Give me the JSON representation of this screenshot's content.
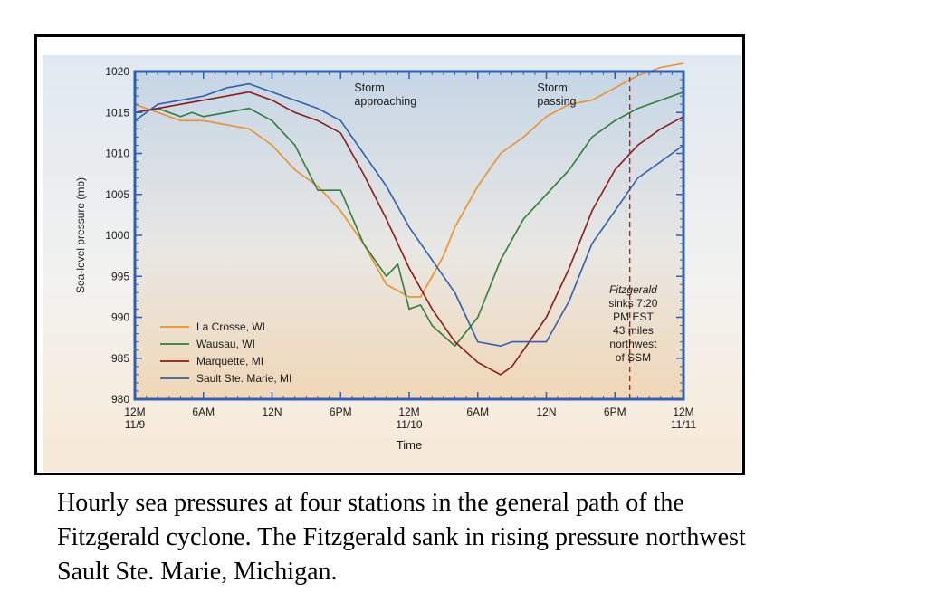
{
  "caption": {
    "line1": "Hourly sea pressures at four stations in the general path of the",
    "line2": "Fitzgerald cyclone.  The Fitzgerald sank in rising pressure northwest",
    "line3": "Sault Ste. Marie, Michigan."
  },
  "chart_data": {
    "type": "line",
    "title": "",
    "xlabel": "Time",
    "ylabel": "Sea-level pressure (mb)",
    "ylim": [
      980,
      1020
    ],
    "xlim": [
      0,
      48
    ],
    "x_unit": "hours since 12M 11/9",
    "y_ticks": [
      "980",
      "985",
      "990",
      "995",
      "1000",
      "1005",
      "1010",
      "1015",
      "1020"
    ],
    "x_ticks": [
      {
        "at": 0,
        "label": "12M",
        "sub": "11/9"
      },
      {
        "at": 6,
        "label": "6AM",
        "sub": ""
      },
      {
        "at": 12,
        "label": "12N",
        "sub": ""
      },
      {
        "at": 18,
        "label": "6PM",
        "sub": ""
      },
      {
        "at": 24,
        "label": "12M",
        "sub": "11/10"
      },
      {
        "at": 30,
        "label": "6AM",
        "sub": ""
      },
      {
        "at": 36,
        "label": "12N",
        "sub": ""
      },
      {
        "at": 42,
        "label": "6PM",
        "sub": ""
      },
      {
        "at": 48,
        "label": "12M",
        "sub": "11/11"
      }
    ],
    "legend_position": "bottom-left",
    "series": [
      {
        "name": "La Crosse, WI",
        "color": "#e8912a",
        "x": [
          0,
          2,
          4,
          6,
          8,
          10,
          12,
          14,
          16,
          18,
          20,
          22,
          24,
          25,
          26,
          27,
          28,
          29,
          30,
          32,
          34,
          36,
          38,
          40,
          42,
          44,
          46,
          48
        ],
        "y": [
          1016,
          1015,
          1014,
          1014,
          1013.5,
          1013,
          1011,
          1008,
          1006,
          1003,
          999,
          994,
          992.5,
          992.5,
          995,
          997.5,
          1001,
          1003.5,
          1006,
          1010,
          1012,
          1014.5,
          1016,
          1016.5,
          1018,
          1019.5,
          1020.5,
          1021
        ]
      },
      {
        "name": "Wausau, WI",
        "color": "#2e7d3a",
        "x": [
          0,
          2,
          4,
          5,
          6,
          8,
          10,
          12,
          14,
          16,
          18,
          20,
          22,
          23,
          24,
          25,
          26,
          28,
          30,
          32,
          34,
          36,
          38,
          40,
          42,
          44,
          46,
          48
        ],
        "y": [
          1015,
          1015.5,
          1014.5,
          1015,
          1014.5,
          1015,
          1015.5,
          1014,
          1011,
          1005.5,
          1005.5,
          999,
          995,
          996.5,
          991,
          991.5,
          989,
          986.5,
          990,
          997,
          1002,
          1005,
          1008,
          1012,
          1014,
          1015.5,
          1016.5,
          1017.5
        ]
      },
      {
        "name": "Marquette, MI",
        "color": "#8b1a1a",
        "x": [
          0,
          2,
          4,
          6,
          8,
          10,
          12,
          14,
          16,
          18,
          20,
          22,
          24,
          26,
          28,
          30,
          32,
          33,
          34,
          36,
          38,
          40,
          42,
          44,
          46,
          48
        ],
        "y": [
          1015,
          1015.5,
          1016,
          1016.5,
          1017,
          1017.5,
          1016.5,
          1015,
          1014,
          1012.5,
          1007.5,
          1002,
          996,
          991,
          987,
          984.5,
          983,
          984,
          986,
          990,
          996,
          1003,
          1008,
          1011,
          1013,
          1014.5
        ]
      },
      {
        "name": "Sault Ste. Marie, MI",
        "color": "#2f5fb3",
        "x": [
          0,
          2,
          4,
          6,
          8,
          10,
          12,
          14,
          16,
          18,
          20,
          22,
          24,
          26,
          28,
          30,
          32,
          33,
          34,
          35,
          36,
          38,
          40,
          42,
          44,
          46,
          48
        ],
        "y": [
          1014,
          1016,
          1016.5,
          1017,
          1018,
          1018.5,
          1017.5,
          1016.5,
          1015.5,
          1014,
          1010,
          1006,
          1001,
          997,
          993,
          987,
          986.5,
          987,
          987,
          987,
          987,
          992,
          999,
          1003,
          1007,
          1009,
          1011
        ]
      }
    ],
    "annotations": [
      {
        "lines": [
          "Storm",
          "approaching"
        ]
      },
      {
        "lines": [
          "Storm",
          "passing"
        ]
      },
      {
        "lines": [
          "Fitzgerald",
          "sinks 7:20",
          "PM EST",
          "43 miles",
          "northwest",
          "of SSM"
        ]
      }
    ],
    "event_marker": {
      "x": 43.3,
      "color": "#b02020",
      "style": "dashed"
    }
  }
}
